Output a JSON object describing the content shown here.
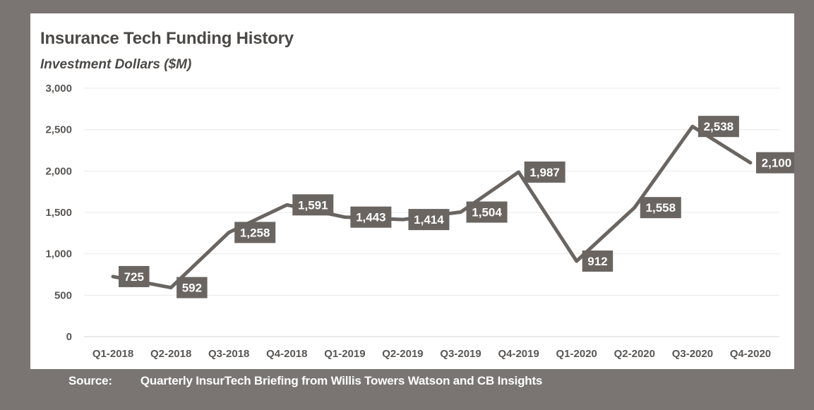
{
  "page": {
    "background": "#7a7573",
    "card_background": "#ffffff"
  },
  "chart_data": {
    "type": "line",
    "title": "Insurance Tech Funding History",
    "subtitle": "Investment Dollars ($M)",
    "categories": [
      "Q1-2018",
      "Q2-2018",
      "Q3-2018",
      "Q4-2018",
      "Q1-2019",
      "Q2-2019",
      "Q3-2019",
      "Q4-2019",
      "Q1-2020",
      "Q2-2020",
      "Q3-2020",
      "Q4-2020"
    ],
    "values": [
      725,
      592,
      1258,
      1591,
      1443,
      1414,
      1504,
      1987,
      912,
      1558,
      2538,
      2100
    ],
    "data_labels": [
      "725",
      "592",
      "1,258",
      "1,591",
      "1,443",
      "1,414",
      "1,504",
      "1,987",
      "912",
      "1,558",
      "2,538",
      "2,100"
    ],
    "xlabel": "",
    "ylabel": "Investment Dollars ($M)",
    "ylim": [
      0,
      3000
    ],
    "yticks": [
      {
        "value": 0,
        "label": "0"
      },
      {
        "value": 500,
        "label": "500"
      },
      {
        "value": 1000,
        "label": "1,000"
      },
      {
        "value": 1500,
        "label": "1,500"
      },
      {
        "value": 2000,
        "label": "2,000"
      },
      {
        "value": 2500,
        "label": "2,500"
      },
      {
        "value": 3000,
        "label": "3,000"
      }
    ],
    "grid": true,
    "legend": "none",
    "line_color": "#6a6561",
    "label_bg": "#6a6561",
    "label_text_color": "#ffffff",
    "grid_color": "#e9e9e9",
    "axis_color": "#d2d2d2",
    "tick_color": "#595755",
    "title_color": "#4b4947"
  },
  "source": {
    "label": "Source:",
    "text": "Quarterly InsurTech Briefing from Willis Towers Watson and CB Insights"
  }
}
